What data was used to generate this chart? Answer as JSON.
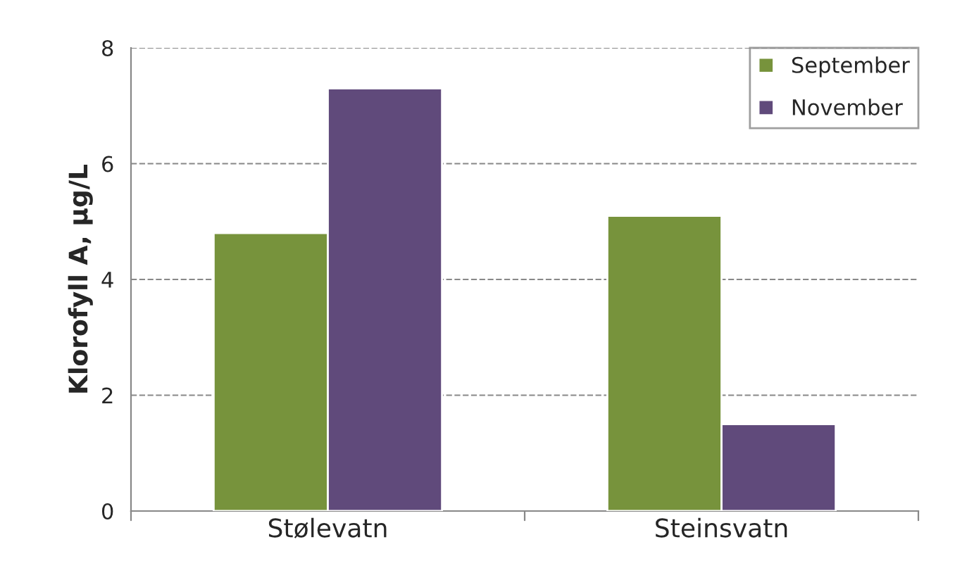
{
  "chart_data": {
    "type": "bar",
    "ylabel": "Klorofyll A, µg/L",
    "categories": [
      "Stølevatn",
      "Steinsvatn"
    ],
    "series": [
      {
        "name": "September",
        "color": "#77933c",
        "values": [
          4.8,
          5.1
        ]
      },
      {
        "name": "November",
        "color": "#604a7b",
        "values": [
          7.3,
          1.5
        ]
      }
    ],
    "ylim": [
      0,
      8
    ],
    "yticks": [
      0,
      2,
      4,
      6,
      8
    ],
    "grid": "y",
    "legend": "top right"
  }
}
